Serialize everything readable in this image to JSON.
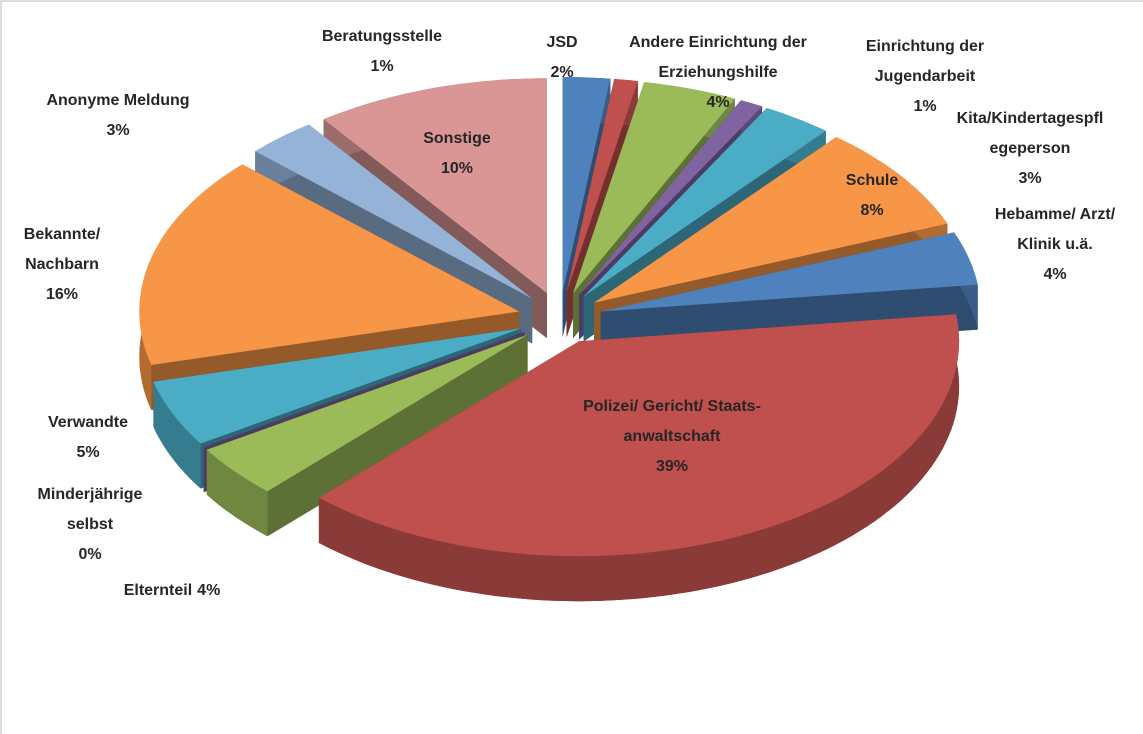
{
  "chart_data": {
    "type": "pie",
    "categories": [
      "JSD",
      "Beratungsstelle",
      "Andere Einrichtung der Erziehungshilfe",
      "Einrichtung der Jugendarbeit",
      "Kita/Kindertagespflegeperson",
      "Schule",
      "Hebamme/ Arzt/ Klinik u.ä.",
      "Polizei/ Gericht/ Staats-anwaltschaft",
      "Elternteil",
      "Minderjährige selbst",
      "Verwandte",
      "Bekannte/ Nachbarn",
      "Anonyme Meldung",
      "Sonstige"
    ],
    "values": [
      2,
      1,
      4,
      1,
      3,
      8,
      4,
      39,
      4,
      0,
      5,
      16,
      3,
      10
    ],
    "value_labels": [
      "2%",
      "1%",
      "4%",
      "1%",
      "3%",
      "8%",
      "4%",
      "39%",
      "4%",
      "0%",
      "5%",
      "16%",
      "3%",
      "10%"
    ],
    "colors": [
      "#4f81bd",
      "#c0504d",
      "#9bbb59",
      "#8064a2",
      "#4bacc6",
      "#f79646",
      "#4f81bd",
      "#c0504d",
      "#9bbb59",
      "#8064a2",
      "#4bacc6",
      "#f79646",
      "#95b3d7",
      "#d99694"
    ]
  }
}
